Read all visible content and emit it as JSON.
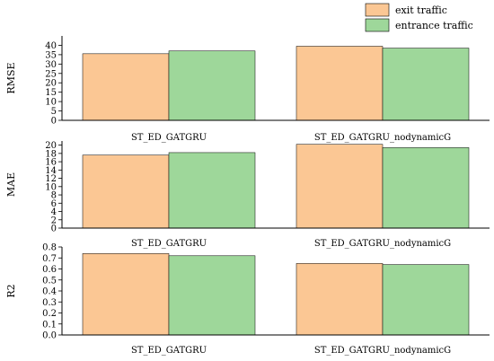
{
  "colors": {
    "exit": "#fbc794",
    "entrance": "#9ed79a",
    "axis": "#000000"
  },
  "legend": {
    "placement": "top-right",
    "items": [
      "exit traffic",
      "entrance traffic"
    ]
  },
  "chart_data": [
    {
      "type": "bar",
      "ylabel": "RMSE",
      "ylim": [
        0,
        45
      ],
      "yticks": [
        0,
        5,
        10,
        15,
        20,
        25,
        30,
        35,
        40
      ],
      "categories": [
        "ST_ED_GATGRU",
        "ST_ED_GATGRU_nodynamicG"
      ],
      "series": [
        {
          "name": "exit traffic",
          "values": [
            35.5,
            39.5
          ]
        },
        {
          "name": "entrance traffic",
          "values": [
            37.0,
            38.5
          ]
        }
      ]
    },
    {
      "type": "bar",
      "ylabel": "MAE",
      "ylim": [
        0,
        21
      ],
      "yticks": [
        0,
        2,
        4,
        6,
        8,
        10,
        12,
        14,
        16,
        18,
        20
      ],
      "categories": [
        "ST_ED_GATGRU",
        "ST_ED_GATGRU_nodynamicG"
      ],
      "series": [
        {
          "name": "exit traffic",
          "values": [
            17.6,
            20.2
          ]
        },
        {
          "name": "entrance traffic",
          "values": [
            18.2,
            19.4
          ]
        }
      ]
    },
    {
      "type": "bar",
      "ylabel": "R2",
      "ylim": [
        0,
        0.8
      ],
      "yticks": [
        0.0,
        0.1,
        0.2,
        0.3,
        0.4,
        0.5,
        0.6,
        0.7,
        0.8
      ],
      "categories": [
        "ST_ED_GATGRU",
        "ST_ED_GATGRU_nodynamicG"
      ],
      "series": [
        {
          "name": "exit traffic",
          "values": [
            0.74,
            0.65
          ]
        },
        {
          "name": "entrance traffic",
          "values": [
            0.72,
            0.64
          ]
        }
      ]
    }
  ]
}
